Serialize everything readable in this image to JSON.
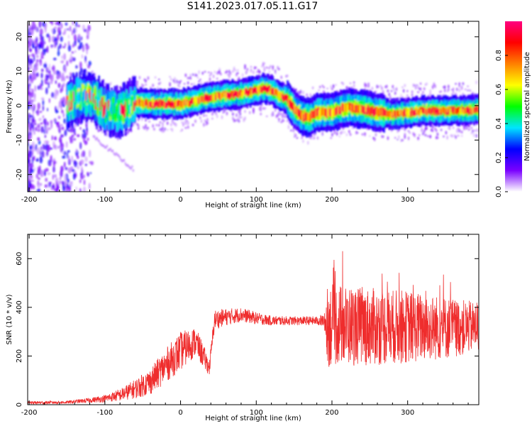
{
  "title": "S141.2023.017.05.11.G17",
  "chart_data": [
    {
      "type": "heatmap",
      "xlabel": "Height of straight line (km)",
      "ylabel": "Frequency (Hz)",
      "xlim": [
        -202,
        394
      ],
      "ylim": [
        -25,
        24.5
      ],
      "x_ticks": [
        "-200",
        "-100",
        "0",
        "100",
        "200",
        "300"
      ],
      "y_ticks": [
        "-20",
        "-10",
        "0",
        "10",
        "20"
      ],
      "colorbar": {
        "label": "Normalized spectral amplitude",
        "range": [
          0,
          1
        ],
        "ticks": [
          "0.0",
          "0.2",
          "0.4",
          "0.6",
          "0.8"
        ],
        "colors": [
          "#ffffff",
          "#7a00ff",
          "#0000ff",
          "#00e5ff",
          "#00ff00",
          "#ffff00",
          "#ff8000",
          "#ff0000",
          "#ff0080"
        ]
      },
      "ridge": {
        "x": [
          -160,
          -140,
          -120,
          -100,
          -80,
          -60,
          -40,
          -20,
          0,
          20,
          40,
          60,
          80,
          100,
          110,
          120,
          130,
          140,
          150,
          160,
          170,
          180,
          200,
          220,
          240,
          260,
          280,
          300,
          320,
          340,
          360,
          380,
          394
        ],
        "freq": [
          0,
          2,
          3,
          -1,
          -2,
          1,
          0.5,
          0.5,
          0.5,
          1.5,
          2.5,
          3,
          3.5,
          4.5,
          5,
          4.5,
          3,
          2,
          -1,
          -3,
          -3.5,
          -2,
          -2,
          -0.5,
          -1,
          -2,
          -2.5,
          -2,
          -1.5,
          -1.5,
          -1.5,
          -1.5,
          -1
        ]
      }
    },
    {
      "type": "line",
      "xlabel": "Height of straight line (km)",
      "ylabel": "SNR (10 * v/v)",
      "xlim": [
        -202,
        394
      ],
      "ylim": [
        0,
        700
      ],
      "x_ticks": [
        "-200",
        "-100",
        "0",
        "100",
        "200",
        "300"
      ],
      "y_ticks": [
        "0",
        "200",
        "400",
        "600"
      ],
      "series_color": "#ef2d2d",
      "envelope": {
        "x": [
          -202,
          -150,
          -120,
          -100,
          -80,
          -60,
          -40,
          -20,
          0,
          20,
          30,
          38,
          45,
          60,
          80,
          100,
          120,
          150,
          180,
          190,
          195,
          200,
          250,
          300,
          350,
          394
        ],
        "mean": [
          8,
          10,
          18,
          25,
          40,
          65,
          95,
          160,
          220,
          260,
          200,
          150,
          350,
          360,
          370,
          355,
          345,
          345,
          345,
          345,
          330,
          330,
          320,
          320,
          315,
          320
        ],
        "spread": [
          6,
          6,
          10,
          15,
          25,
          40,
          55,
          70,
          80,
          60,
          50,
          30,
          40,
          35,
          30,
          25,
          20,
          18,
          18,
          30,
          180,
          170,
          160,
          150,
          130,
          100
        ]
      }
    }
  ]
}
